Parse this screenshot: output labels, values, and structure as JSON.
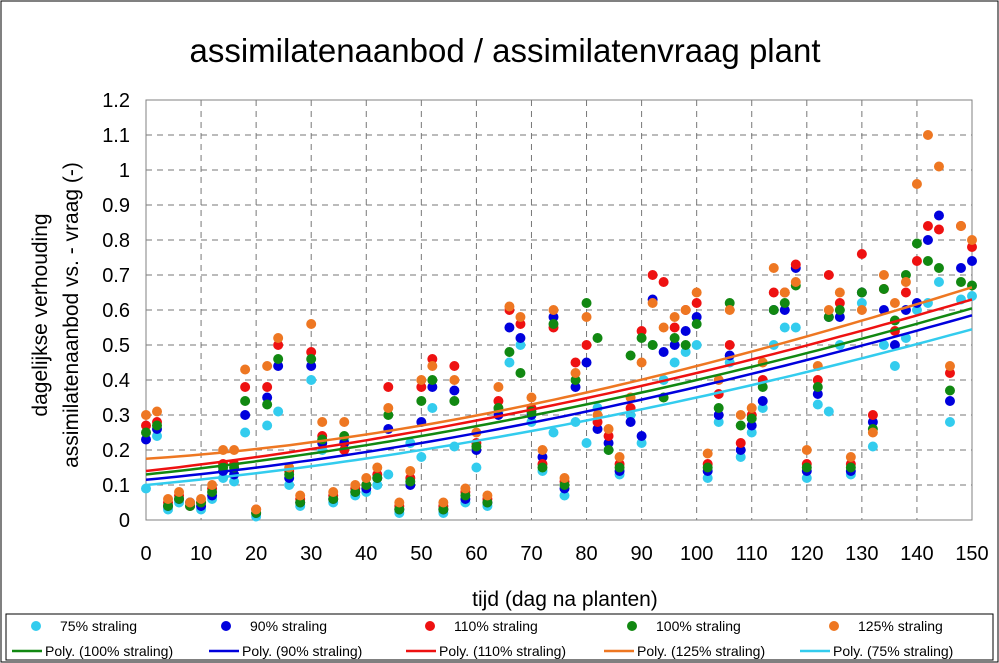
{
  "chart_data": {
    "type": "scatter",
    "title": "assimilatenaanbod / assimilatenvraag plant",
    "xlabel": "tijd (dag na planten)",
    "ylabel_lines": [
      "dagelijkse verhouding",
      "assimilatenaanbod vs. - vraag (-)"
    ],
    "xlim": [
      0,
      150
    ],
    "ylim": [
      0,
      1.2
    ],
    "x_ticks": [
      0,
      10,
      20,
      30,
      40,
      50,
      60,
      70,
      80,
      90,
      100,
      110,
      120,
      130,
      140,
      150
    ],
    "y_ticks": [
      0,
      0.1,
      0.2,
      0.3,
      0.4,
      0.5,
      0.6,
      0.7,
      0.8,
      0.9,
      1,
      1.1,
      1.2
    ],
    "y_tick_labels": [
      "0",
      "0.1",
      "0.2",
      "0.3",
      "0.4",
      "0.5",
      "0.6",
      "0.7",
      "0.8",
      "0.9",
      "1",
      "1.1",
      "1.2"
    ],
    "grid": true,
    "legend_position": "bottom",
    "series": [
      {
        "name": "75% straling",
        "color": "#33ccee",
        "x": [
          0,
          2,
          4,
          6,
          8,
          10,
          12,
          14,
          16,
          18,
          20,
          22,
          24,
          26,
          28,
          30,
          32,
          34,
          36,
          38,
          40,
          42,
          44,
          46,
          48,
          50,
          52,
          54,
          56,
          58,
          60,
          62,
          64,
          66,
          68,
          70,
          72,
          74,
          76,
          78,
          80,
          82,
          84,
          86,
          88,
          90,
          92,
          94,
          96,
          98,
          100,
          102,
          104,
          106,
          108,
          110,
          112,
          114,
          116,
          118,
          120,
          122,
          124,
          126,
          128,
          130,
          132,
          134,
          136,
          138,
          140,
          142,
          144,
          146,
          148,
          150
        ],
        "y": [
          0.09,
          0.24,
          0.03,
          0.05,
          0.04,
          0.03,
          0.06,
          0.12,
          0.11,
          0.25,
          0.01,
          0.27,
          0.31,
          0.1,
          0.04,
          0.4,
          0.2,
          0.05,
          0.23,
          0.07,
          0.08,
          0.1,
          0.13,
          0.02,
          0.22,
          0.18,
          0.32,
          0.02,
          0.21,
          0.05,
          0.15,
          0.04,
          0.31,
          0.45,
          0.5,
          0.28,
          0.14,
          0.25,
          0.07,
          0.28,
          0.22,
          0.32,
          0.2,
          0.13,
          0.3,
          0.22,
          0.5,
          0.4,
          0.45,
          0.48,
          0.5,
          0.12,
          0.28,
          0.45,
          0.18,
          0.25,
          0.32,
          0.5,
          0.55,
          0.55,
          0.12,
          0.33,
          0.31,
          0.5,
          0.13,
          0.62,
          0.21,
          0.5,
          0.44,
          0.52,
          0.6,
          0.62,
          0.68,
          0.28,
          0.63,
          0.64
        ]
      },
      {
        "name": "90% straling",
        "color": "#0000dd",
        "x": [
          0,
          2,
          4,
          6,
          8,
          10,
          12,
          14,
          16,
          18,
          20,
          22,
          24,
          26,
          28,
          30,
          32,
          34,
          36,
          38,
          40,
          42,
          44,
          46,
          48,
          50,
          52,
          54,
          56,
          58,
          60,
          62,
          64,
          66,
          68,
          70,
          72,
          74,
          76,
          78,
          80,
          82,
          84,
          86,
          88,
          90,
          92,
          94,
          96,
          98,
          100,
          102,
          104,
          106,
          108,
          110,
          112,
          114,
          116,
          118,
          120,
          122,
          124,
          126,
          128,
          130,
          132,
          134,
          136,
          138,
          140,
          142,
          144,
          146,
          148,
          150
        ],
        "y": [
          0.23,
          0.26,
          0.04,
          0.06,
          0.05,
          0.04,
          0.07,
          0.14,
          0.13,
          0.3,
          0.02,
          0.35,
          0.44,
          0.12,
          0.05,
          0.44,
          0.22,
          0.06,
          0.22,
          0.08,
          0.09,
          0.12,
          0.26,
          0.03,
          0.1,
          0.28,
          0.38,
          0.03,
          0.37,
          0.06,
          0.2,
          0.05,
          0.3,
          0.55,
          0.52,
          0.3,
          0.18,
          0.58,
          0.09,
          0.38,
          0.45,
          0.26,
          0.22,
          0.14,
          0.28,
          0.24,
          0.63,
          0.48,
          0.5,
          0.54,
          0.58,
          0.14,
          0.3,
          0.47,
          0.2,
          0.27,
          0.34,
          0.6,
          0.6,
          0.72,
          0.14,
          0.36,
          0.58,
          0.58,
          0.14,
          0.65,
          0.28,
          0.6,
          0.5,
          0.6,
          0.62,
          0.8,
          0.87,
          0.34,
          0.72,
          0.74
        ]
      },
      {
        "name": "110% straling",
        "color": "#ee1111",
        "x": [
          0,
          2,
          4,
          6,
          8,
          10,
          12,
          14,
          16,
          18,
          20,
          22,
          24,
          26,
          28,
          30,
          32,
          34,
          36,
          38,
          40,
          42,
          44,
          46,
          48,
          50,
          52,
          54,
          56,
          58,
          60,
          62,
          64,
          66,
          68,
          70,
          72,
          74,
          76,
          78,
          80,
          82,
          84,
          86,
          88,
          90,
          92,
          94,
          96,
          98,
          100,
          102,
          104,
          106,
          108,
          110,
          112,
          114,
          116,
          118,
          120,
          122,
          124,
          126,
          128,
          130,
          132,
          134,
          136,
          138,
          140,
          142,
          144,
          146,
          148,
          150
        ],
        "y": [
          0.27,
          0.28,
          0.05,
          0.07,
          0.04,
          0.05,
          0.09,
          0.16,
          0.16,
          0.38,
          0.03,
          0.38,
          0.5,
          0.14,
          0.06,
          0.48,
          0.24,
          0.07,
          0.2,
          0.09,
          0.1,
          0.13,
          0.38,
          0.04,
          0.12,
          0.38,
          0.46,
          0.04,
          0.44,
          0.08,
          0.22,
          0.06,
          0.34,
          0.6,
          0.56,
          0.32,
          0.16,
          0.55,
          0.11,
          0.45,
          0.5,
          0.28,
          0.24,
          0.16,
          0.32,
          0.54,
          0.7,
          0.68,
          0.55,
          0.6,
          0.62,
          0.16,
          0.36,
          0.5,
          0.22,
          0.3,
          0.4,
          0.65,
          0.65,
          0.73,
          0.16,
          0.4,
          0.7,
          0.62,
          0.16,
          0.76,
          0.3,
          0.66,
          0.54,
          0.65,
          0.74,
          0.84,
          0.83,
          0.42,
          0.84,
          0.78
        ]
      },
      {
        "name": "100% straling",
        "color": "#118811",
        "x": [
          0,
          2,
          4,
          6,
          8,
          10,
          12,
          14,
          16,
          18,
          20,
          22,
          24,
          26,
          28,
          30,
          32,
          34,
          36,
          38,
          40,
          42,
          44,
          46,
          48,
          50,
          52,
          54,
          56,
          58,
          60,
          62,
          64,
          66,
          68,
          70,
          72,
          74,
          76,
          78,
          80,
          82,
          84,
          86,
          88,
          90,
          92,
          94,
          96,
          98,
          100,
          102,
          104,
          106,
          108,
          110,
          112,
          114,
          116,
          118,
          120,
          122,
          124,
          126,
          128,
          130,
          132,
          134,
          136,
          138,
          140,
          142,
          144,
          146,
          148,
          150
        ],
        "y": [
          0.25,
          0.27,
          0.04,
          0.06,
          0.04,
          0.05,
          0.08,
          0.15,
          0.15,
          0.34,
          0.02,
          0.33,
          0.46,
          0.13,
          0.05,
          0.46,
          0.23,
          0.06,
          0.24,
          0.08,
          0.1,
          0.12,
          0.3,
          0.03,
          0.11,
          0.34,
          0.4,
          0.03,
          0.34,
          0.07,
          0.21,
          0.05,
          0.32,
          0.48,
          0.42,
          0.31,
          0.15,
          0.56,
          0.1,
          0.4,
          0.62,
          0.52,
          0.2,
          0.15,
          0.47,
          0.52,
          0.5,
          0.35,
          0.52,
          0.5,
          0.56,
          0.15,
          0.32,
          0.62,
          0.27,
          0.29,
          0.38,
          0.6,
          0.62,
          0.67,
          0.15,
          0.38,
          0.58,
          0.6,
          0.15,
          0.65,
          0.26,
          0.66,
          0.57,
          0.7,
          0.79,
          0.74,
          0.72,
          0.37,
          0.68,
          0.67
        ]
      },
      {
        "name": "125% straling",
        "color": "#ee7722",
        "x": [
          0,
          2,
          4,
          6,
          8,
          10,
          12,
          14,
          16,
          18,
          20,
          22,
          24,
          26,
          28,
          30,
          32,
          34,
          36,
          38,
          40,
          42,
          44,
          46,
          48,
          50,
          52,
          54,
          56,
          58,
          60,
          62,
          64,
          66,
          68,
          70,
          72,
          74,
          76,
          78,
          80,
          82,
          84,
          86,
          88,
          90,
          92,
          94,
          96,
          98,
          100,
          102,
          104,
          106,
          108,
          110,
          112,
          114,
          116,
          118,
          120,
          122,
          124,
          126,
          128,
          130,
          132,
          134,
          136,
          138,
          140,
          142,
          144,
          146,
          148,
          150
        ],
        "y": [
          0.3,
          0.31,
          0.06,
          0.08,
          0.05,
          0.06,
          0.1,
          0.2,
          0.2,
          0.43,
          0.03,
          0.44,
          0.52,
          0.15,
          0.07,
          0.56,
          0.28,
          0.08,
          0.28,
          0.1,
          0.12,
          0.15,
          0.32,
          0.05,
          0.14,
          0.4,
          0.44,
          0.05,
          0.4,
          0.09,
          0.25,
          0.07,
          0.38,
          0.61,
          0.58,
          0.35,
          0.2,
          0.6,
          0.12,
          0.42,
          0.58,
          0.3,
          0.26,
          0.18,
          0.35,
          0.45,
          0.62,
          0.55,
          0.58,
          0.6,
          0.65,
          0.19,
          0.4,
          0.6,
          0.3,
          0.32,
          0.45,
          0.72,
          0.65,
          0.68,
          0.2,
          0.44,
          0.6,
          0.65,
          0.18,
          0.6,
          0.25,
          0.7,
          0.62,
          0.68,
          0.96,
          1.1,
          1.01,
          0.44,
          0.84,
          0.8
        ]
      }
    ],
    "trendlines": [
      {
        "name": "Poly. (100% straling)",
        "color": "#118811",
        "y_at": [
          [
            0,
            0.13
          ],
          [
            50,
            0.24
          ],
          [
            100,
            0.4
          ],
          [
            150,
            0.605
          ]
        ]
      },
      {
        "name": "Poly. (90% straling)",
        "color": "#0000dd",
        "y_at": [
          [
            0,
            0.115
          ],
          [
            50,
            0.22
          ],
          [
            100,
            0.38
          ],
          [
            150,
            0.585
          ]
        ]
      },
      {
        "name": "Poly. (110% straling)",
        "color": "#ee1111",
        "y_at": [
          [
            0,
            0.14
          ],
          [
            50,
            0.255
          ],
          [
            100,
            0.42
          ],
          [
            150,
            0.63
          ]
        ]
      },
      {
        "name": "Poly. (125% straling)",
        "color": "#ee7722",
        "y_at": [
          [
            0,
            0.175
          ],
          [
            50,
            0.27
          ],
          [
            100,
            0.44
          ],
          [
            150,
            0.665
          ]
        ]
      },
      {
        "name": "Poly. (75% straling)",
        "color": "#33ccee",
        "y_at": [
          [
            0,
            0.1
          ],
          [
            50,
            0.2
          ],
          [
            100,
            0.35
          ],
          [
            150,
            0.545
          ]
        ]
      }
    ]
  }
}
